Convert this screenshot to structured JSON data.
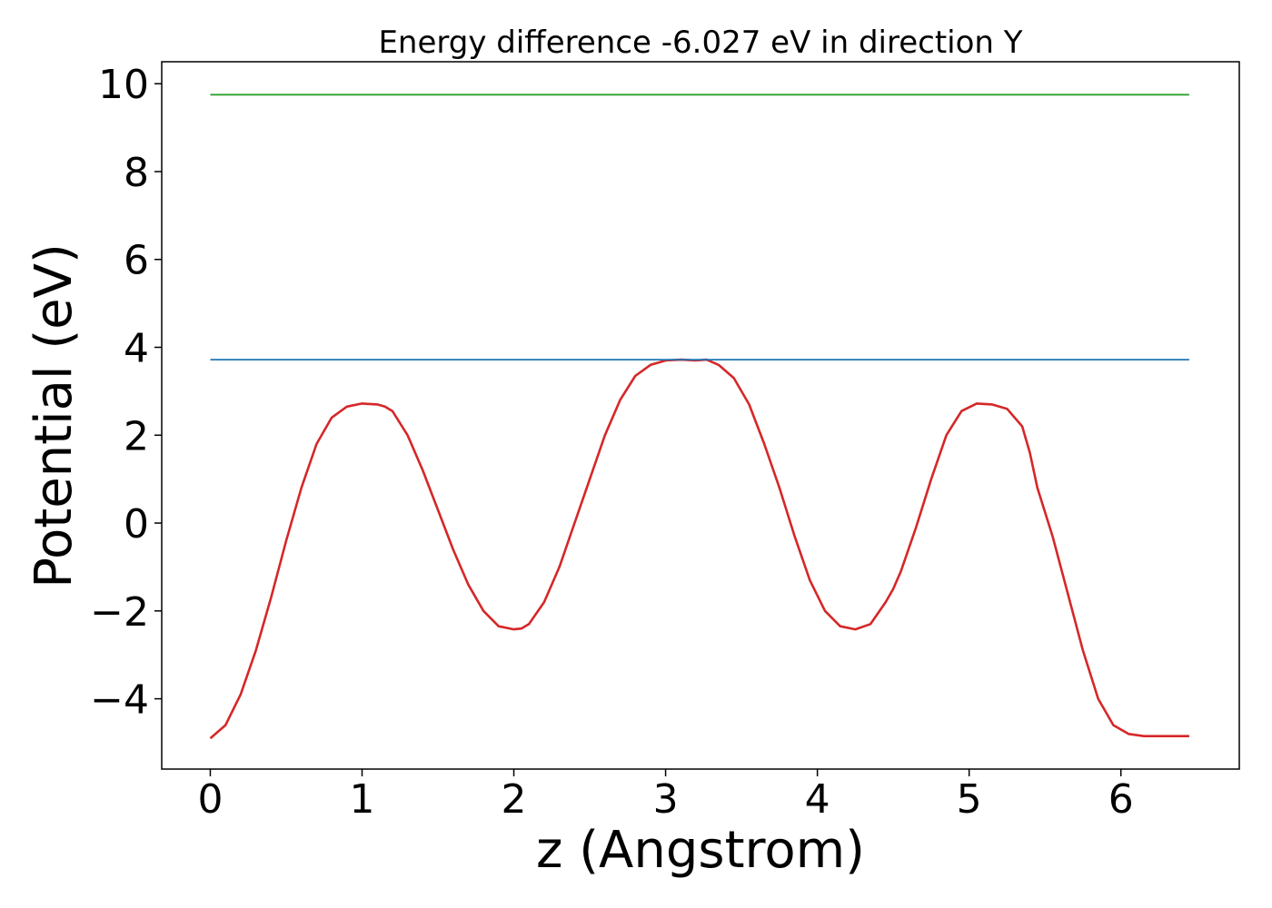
{
  "chart_data": {
    "type": "line",
    "title": "Energy difference -6.027 eV in direction Y",
    "xlabel": "z (Angstrom)",
    "ylabel": "Potential (eV)",
    "xlim": [
      -0.32,
      6.78
    ],
    "ylim": [
      -5.6,
      10.5
    ],
    "xticks": [
      0,
      1,
      2,
      3,
      4,
      5,
      6
    ],
    "xtick_labels": [
      "0",
      "1",
      "2",
      "3",
      "4",
      "5",
      "6"
    ],
    "yticks": [
      -4,
      -2,
      0,
      2,
      4,
      6,
      8,
      10
    ],
    "ytick_labels": [
      "−4",
      "−2",
      "0",
      "2",
      "4",
      "6",
      "8",
      "10"
    ],
    "grid": false,
    "series": [
      {
        "color": "#d62728",
        "kind": "curve",
        "x": [
          0.0,
          0.1,
          0.2,
          0.3,
          0.4,
          0.5,
          0.6,
          0.7,
          0.8,
          0.9,
          1.0,
          1.1,
          1.15,
          1.2,
          1.3,
          1.4,
          1.5,
          1.6,
          1.7,
          1.8,
          1.9,
          2.0,
          2.05,
          2.1,
          2.2,
          2.3,
          2.4,
          2.5,
          2.6,
          2.7,
          2.8,
          2.9,
          3.0,
          3.1,
          3.2,
          3.27,
          3.35,
          3.45,
          3.55,
          3.65,
          3.75,
          3.85,
          3.95,
          4.05,
          4.15,
          4.25,
          4.35,
          4.45,
          4.5,
          4.55,
          4.65,
          4.75,
          4.85,
          4.95,
          5.05,
          5.15,
          5.25,
          5.35,
          5.4,
          5.45,
          5.55,
          5.65,
          5.75,
          5.85,
          5.95,
          6.05,
          6.15,
          6.25,
          6.35,
          6.45
        ],
        "y": [
          -4.9,
          -4.6,
          -3.9,
          -2.9,
          -1.7,
          -0.4,
          0.8,
          1.8,
          2.4,
          2.65,
          2.72,
          2.7,
          2.65,
          2.55,
          2.0,
          1.2,
          0.3,
          -0.6,
          -1.4,
          -2.0,
          -2.35,
          -2.42,
          -2.4,
          -2.3,
          -1.8,
          -1.0,
          0.0,
          1.0,
          2.0,
          2.8,
          3.35,
          3.6,
          3.7,
          3.72,
          3.7,
          3.72,
          3.6,
          3.3,
          2.7,
          1.8,
          0.8,
          -0.3,
          -1.3,
          -2.0,
          -2.35,
          -2.42,
          -2.3,
          -1.8,
          -1.5,
          -1.1,
          -0.1,
          1.0,
          2.0,
          2.55,
          2.72,
          2.7,
          2.6,
          2.2,
          1.6,
          0.8,
          -0.3,
          -1.6,
          -2.9,
          -4.0,
          -4.6,
          -4.8,
          -4.85,
          -4.85,
          -4.85,
          -4.85
        ]
      },
      {
        "color": "#1f77b4",
        "kind": "flat",
        "x": [
          0.0,
          6.45
        ],
        "y": [
          3.72,
          3.72
        ]
      },
      {
        "color": "#2ca02c",
        "kind": "flat",
        "x": [
          0.0,
          6.45
        ],
        "y": [
          9.75,
          9.75
        ]
      }
    ]
  }
}
